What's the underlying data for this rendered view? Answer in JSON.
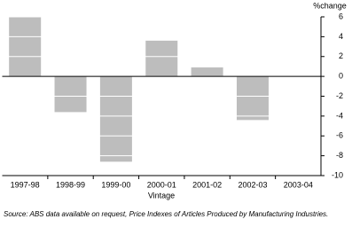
{
  "chart_data": {
    "type": "bar",
    "y_label": "%change",
    "x_label": "Vintage",
    "source": "Source: ABS data available on request, Price Indexes of Articles Produced by Manufacturing Industries.",
    "categories": [
      "1997-98",
      "1998-99",
      "1999-00",
      "2000-01",
      "2001-02",
      "2002-03",
      "2003-04"
    ],
    "values": [
      6.0,
      -3.6,
      -8.6,
      3.6,
      0.9,
      -4.4,
      null
    ],
    "color": "#bdbdbd",
    "ylim": [
      -10,
      6
    ],
    "yticks": [
      6,
      4,
      2,
      0,
      -2,
      -4,
      -6,
      -8,
      -10
    ],
    "grid": true
  }
}
